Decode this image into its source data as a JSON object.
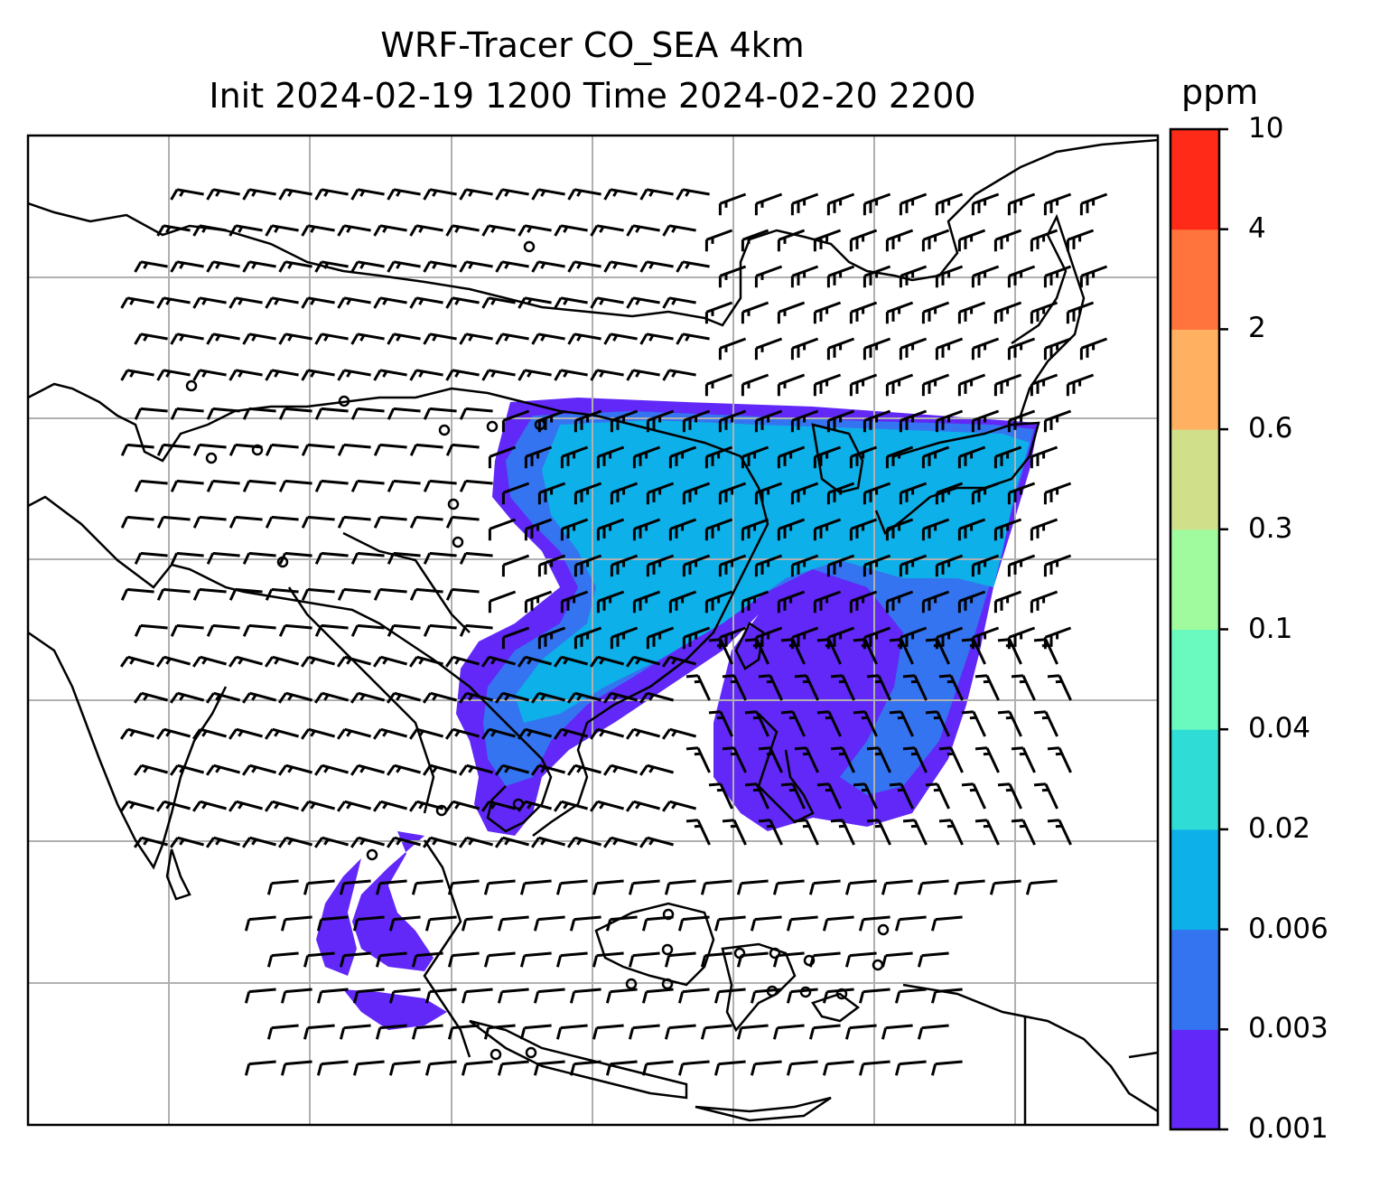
{
  "figure": {
    "title_line1": "WRF-Tracer CO_SEA 4km",
    "title_line2": "Init 2024-02-19 1200 Time 2024-02-20 2200"
  },
  "colorbar": {
    "unit": "ppm",
    "levels": [
      "0.001",
      "0.003",
      "0.006",
      "0.02",
      "0.04",
      "0.1",
      "0.3",
      "0.6",
      "2",
      "4",
      "10"
    ],
    "colors": [
      "#6128f8",
      "#3474f0",
      "#0db0e8",
      "#30dcd6",
      "#6afac0",
      "#a0fa9e",
      "#d0e08a",
      "#ffb060",
      "#ff733d",
      "#ff2a17"
    ]
  },
  "map": {
    "gridlines": true,
    "land_outline_color": "#000000",
    "tracer_color_main": "#6128f8",
    "tracer_color_mid": "#3474f0",
    "tracer_color_high": "#0db0e8",
    "wind_barbs": true
  }
}
